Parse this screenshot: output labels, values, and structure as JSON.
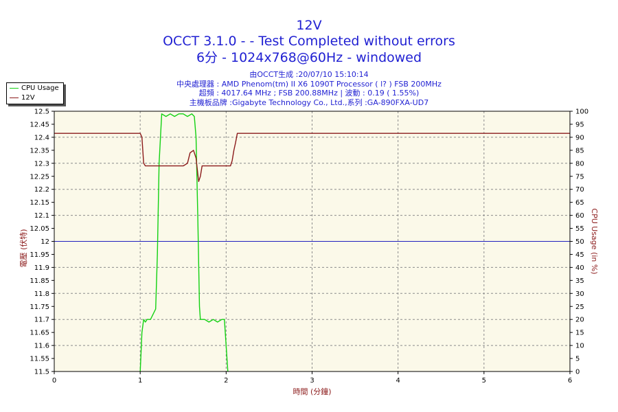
{
  "header": {
    "title1": "12V",
    "title2": "OCCT 3.1.0 -  - Test Completed without errors",
    "title3": "6分 - 1024x768@60Hz - windowed",
    "info": [
      "由OCCT生成 :20/07/10 15:10:14",
      "中央處理器 : AMD Phenom(tm) II X6 1090T Processor (   l? ) FSB 200MHz",
      "超頻 : 4017.64 MHz ; FSB 200.88MHz | 波動 : 0.19 ( 1.55%)",
      "主機板品牌 :Gigabyte Technology Co., Ltd.,系列 :GA-890FXA-UD7"
    ]
  },
  "colors": {
    "background": "#ffffff",
    "plot_bg": "#fbf9e9",
    "cpu": "#11d111",
    "v12": "#8b1a1a",
    "ref": "#1e1ebe",
    "title": "#1f1fd2"
  },
  "chart_data": {
    "type": "line",
    "xlabel": "時間 (分鐘)",
    "ylabel": "電壓 (伏特)",
    "y2label": "CPU Usage (in %)",
    "xlim": [
      0,
      6
    ],
    "ylim": [
      11.5,
      12.5
    ],
    "y2lim": [
      0,
      100
    ],
    "xticks": [
      0,
      1,
      2,
      3,
      4,
      5,
      6
    ],
    "yticks": [
      11.5,
      11.55,
      11.6,
      11.65,
      11.7,
      11.75,
      11.8,
      11.85,
      11.9,
      11.95,
      12,
      12.05,
      12.1,
      12.15,
      12.2,
      12.25,
      12.3,
      12.35,
      12.4,
      12.45,
      12.5
    ],
    "y2ticks": [
      0,
      5,
      10,
      15,
      20,
      25,
      30,
      35,
      40,
      45,
      50,
      55,
      60,
      65,
      70,
      75,
      80,
      85,
      90,
      95,
      100
    ],
    "grid": true,
    "legend_position": "top-left",
    "reference_line": 12.0,
    "series": [
      {
        "name": "CPU Usage",
        "axis": "right",
        "x": [
          1.0,
          1.02,
          1.04,
          1.06,
          1.08,
          1.12,
          1.18,
          1.2,
          1.22,
          1.25,
          1.3,
          1.35,
          1.4,
          1.45,
          1.5,
          1.55,
          1.6,
          1.63,
          1.65,
          1.67,
          1.69,
          1.7,
          1.75,
          1.8,
          1.85,
          1.9,
          1.95,
          1.98,
          2.0,
          2.02
        ],
        "values": [
          0,
          15,
          20,
          19,
          20,
          20,
          24,
          45,
          80,
          99,
          98,
          99,
          98,
          99,
          99,
          98,
          99,
          98,
          90,
          60,
          25,
          20,
          20,
          19,
          20,
          19,
          20,
          20,
          10,
          0
        ]
      },
      {
        "name": "12V",
        "axis": "left",
        "x": [
          0,
          1.0,
          1.02,
          1.04,
          1.06,
          1.1,
          1.5,
          1.55,
          1.58,
          1.62,
          1.65,
          1.68,
          1.7,
          1.72,
          1.76,
          2.05,
          2.07,
          2.09,
          2.11,
          2.13,
          6.0
        ],
        "values": [
          12.415,
          12.415,
          12.4,
          12.3,
          12.29,
          12.29,
          12.29,
          12.3,
          12.34,
          12.35,
          12.32,
          12.23,
          12.25,
          12.29,
          12.29,
          12.29,
          12.31,
          12.35,
          12.38,
          12.415,
          12.415
        ]
      }
    ]
  }
}
